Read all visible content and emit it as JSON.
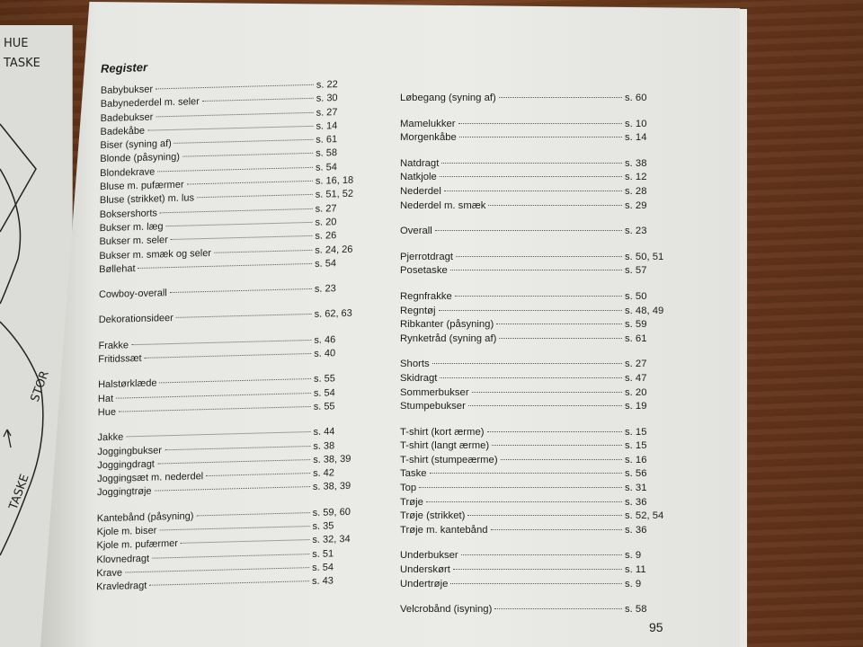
{
  "left_page": {
    "notes": [
      "HUE",
      "TASKE",
      "STOR",
      "TASKE"
    ]
  },
  "title": "Register",
  "page_number": "95",
  "left_column": [
    [
      {
        "label": "Babybukser",
        "page": "s. 22"
      },
      {
        "label": "Babynederdel m. seler",
        "page": "s. 30"
      },
      {
        "label": "Badebukser",
        "page": "s. 27"
      },
      {
        "label": "Badekåbe",
        "page": "s. 14"
      },
      {
        "label": "Biser (syning af)",
        "page": "s. 61"
      },
      {
        "label": "Blonde (påsyning)",
        "page": "s. 58"
      },
      {
        "label": "Blondekrave",
        "page": "s. 54"
      },
      {
        "label": "Bluse m. pufærmer",
        "page": "s. 16, 18"
      },
      {
        "label": "Bluse (strikket) m. lus",
        "page": "s. 51, 52"
      },
      {
        "label": "Boksershorts",
        "page": "s. 27"
      },
      {
        "label": "Bukser m. læg",
        "page": "s. 20"
      },
      {
        "label": "Bukser m. seler",
        "page": "s. 26"
      },
      {
        "label": "Bukser m. smæk og seler",
        "page": "s. 24, 26"
      },
      {
        "label": "Bøllehat",
        "page": "s. 54"
      }
    ],
    [
      {
        "label": "Cowboy-overall",
        "page": "s. 23"
      }
    ],
    [
      {
        "label": "Dekorationsideer",
        "page": "s. 62, 63"
      }
    ],
    [
      {
        "label": "Frakke",
        "page": "s. 46"
      },
      {
        "label": "Fritidssæt",
        "page": "s. 40"
      }
    ],
    [
      {
        "label": "Halstørklæde",
        "page": "s. 55"
      },
      {
        "label": "Hat",
        "page": "s. 54"
      },
      {
        "label": "Hue",
        "page": "s. 55"
      }
    ],
    [
      {
        "label": "Jakke",
        "page": "s. 44"
      },
      {
        "label": "Joggingbukser",
        "page": "s. 38"
      },
      {
        "label": "Joggingdragt",
        "page": "s. 38, 39"
      },
      {
        "label": "Joggingsæt m. nederdel",
        "page": "s. 42"
      },
      {
        "label": "Joggingtrøje",
        "page": "s. 38, 39"
      }
    ],
    [
      {
        "label": "Kantebånd (påsyning)",
        "page": "s. 59, 60"
      },
      {
        "label": "Kjole m. biser",
        "page": "s. 35"
      },
      {
        "label": "Kjole m. pufærmer",
        "page": "s. 32, 34"
      },
      {
        "label": "Klovnedragt",
        "page": "s. 51"
      },
      {
        "label": "Krave",
        "page": "s. 54"
      },
      {
        "label": "Kravledragt",
        "page": "s. 43"
      }
    ]
  ],
  "right_column": [
    [
      {
        "label": "Løbegang (syning af)",
        "page": "s. 60"
      }
    ],
    [
      {
        "label": "Mamelukker",
        "page": "s. 10"
      },
      {
        "label": "Morgenkåbe",
        "page": "s. 14"
      }
    ],
    [
      {
        "label": "Natdragt",
        "page": "s. 38"
      },
      {
        "label": "Natkjole",
        "page": "s. 12"
      },
      {
        "label": "Nederdel",
        "page": "s. 28"
      },
      {
        "label": "Nederdel m. smæk",
        "page": "s. 29"
      }
    ],
    [
      {
        "label": "Overall",
        "page": "s. 23"
      }
    ],
    [
      {
        "label": "Pjerrotdragt",
        "page": "s. 50, 51"
      },
      {
        "label": "Posetaske",
        "page": "s. 57"
      }
    ],
    [
      {
        "label": "Regnfrakke",
        "page": "s. 50"
      },
      {
        "label": "Regntøj",
        "page": "s. 48, 49"
      },
      {
        "label": "Ribkanter (påsyning)",
        "page": "s. 59"
      },
      {
        "label": "Rynketråd (syning af)",
        "page": "s. 61"
      }
    ],
    [
      {
        "label": "Shorts",
        "page": "s. 27"
      },
      {
        "label": "Skidragt",
        "page": "s. 47"
      },
      {
        "label": "Sommerbukser",
        "page": "s. 20"
      },
      {
        "label": "Stumpebukser",
        "page": "s. 19"
      }
    ],
    [
      {
        "label": "T-shirt (kort ærme)",
        "page": "s. 15"
      },
      {
        "label": "T-shirt (langt ærme)",
        "page": "s. 15"
      },
      {
        "label": "T-shirt (stumpeærme)",
        "page": "s. 16"
      },
      {
        "label": "Taske",
        "page": "s. 56"
      },
      {
        "label": "Top",
        "page": "s. 31"
      },
      {
        "label": "Trøje",
        "page": "s. 36"
      },
      {
        "label": "Trøje (strikket)",
        "page": "s. 52, 54"
      },
      {
        "label": "Trøje m. kantebånd",
        "page": "s. 36"
      }
    ],
    [
      {
        "label": "Underbukser",
        "page": "s.  9"
      },
      {
        "label": "Underskørt",
        "page": "s. 11"
      },
      {
        "label": "Undertrøje",
        "page": "s.  9"
      }
    ],
    [
      {
        "label": "Velcrobånd (isyning)",
        "page": "s. 58"
      }
    ]
  ]
}
